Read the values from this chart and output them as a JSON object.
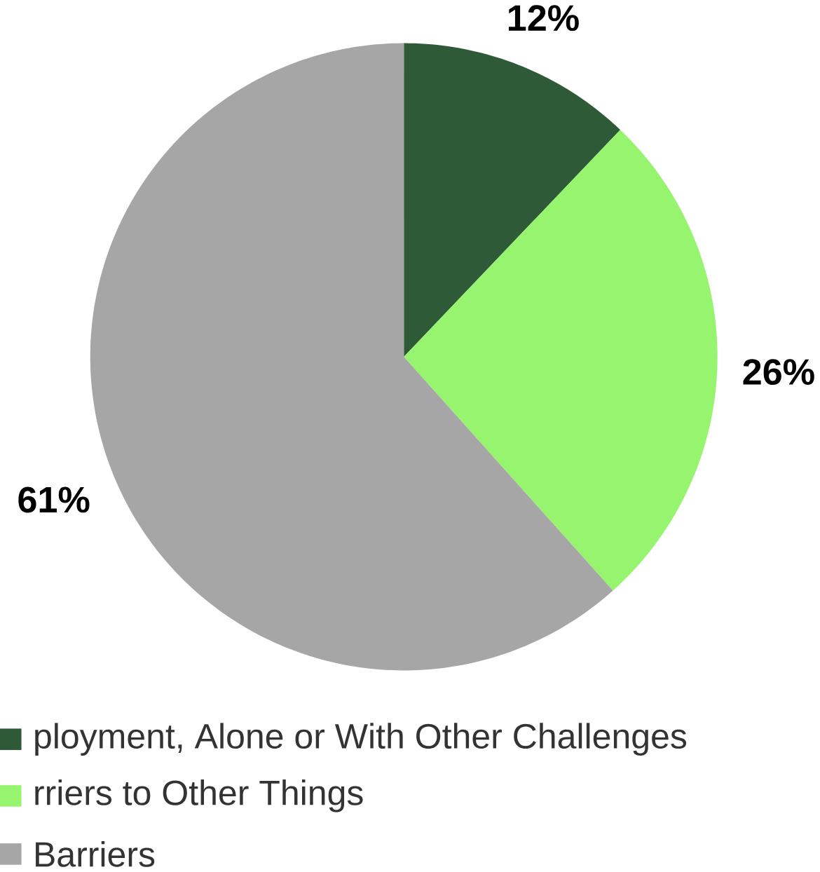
{
  "chart_data": {
    "type": "pie",
    "categories": [
      "ployment, Alone or With Other Challenges",
      "rriers to Other Things",
      "Barriers"
    ],
    "values": [
      12,
      26,
      61
    ],
    "colors": [
      "#2f5a37",
      "#96f46e",
      "#a6a6a6"
    ],
    "value_labels": [
      "12%",
      "26%",
      "61%"
    ],
    "legend": "bottom"
  }
}
